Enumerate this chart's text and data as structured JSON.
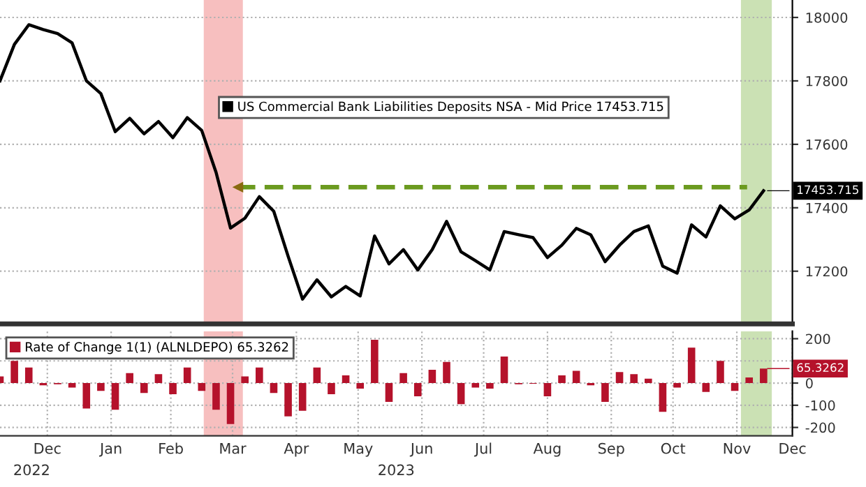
{
  "chart_data": [
    {
      "type": "line",
      "xlim": [
        "2022-11-23",
        "2023-12-13"
      ],
      "ylim": [
        17034,
        18055
      ],
      "yticks": [
        17200,
        17400,
        17600,
        17800,
        18000
      ],
      "tick_labels": "y",
      "grid": true,
      "legend": "top",
      "x": [
        "2022-11-23",
        "2022-11-30",
        "2022-12-07",
        "2022-12-14",
        "2022-12-21",
        "2022-12-28",
        "2023-01-04",
        "2023-01-11",
        "2023-01-18",
        "2023-01-25",
        "2023-02-01",
        "2023-02-08",
        "2023-02-15",
        "2023-02-22",
        "2023-03-01",
        "2023-03-08",
        "2023-03-15",
        "2023-03-22",
        "2023-03-29",
        "2023-04-05",
        "2023-04-12",
        "2023-04-19",
        "2023-04-26",
        "2023-05-03",
        "2023-05-10",
        "2023-05-17",
        "2023-05-24",
        "2023-05-31",
        "2023-06-07",
        "2023-06-14",
        "2023-06-21",
        "2023-06-28",
        "2023-07-05",
        "2023-07-12",
        "2023-07-19",
        "2023-07-26",
        "2023-08-02",
        "2023-08-09",
        "2023-08-16",
        "2023-08-23",
        "2023-08-30",
        "2023-09-06",
        "2023-09-13",
        "2023-09-20",
        "2023-09-27",
        "2023-10-04",
        "2023-10-11",
        "2023-10-18",
        "2023-10-25",
        "2023-11-01",
        "2023-11-08",
        "2023-11-15",
        "2023-11-22",
        "2023-11-29"
      ],
      "series": [
        {
          "name": "US Commercial Bank Liabilities Deposits NSA - Mid Price 17453.715",
          "color": "#000000",
          "line_style": "solid",
          "values": [
            17800,
            17915,
            17977,
            17962,
            17949,
            17920,
            17800,
            17760,
            17640,
            17682,
            17633,
            17672,
            17621,
            17684,
            17644,
            17511,
            17336,
            17367,
            17435,
            17389,
            17247,
            17112,
            17173,
            17119,
            17152,
            17122,
            17311,
            17223,
            17268,
            17204,
            17268,
            17357,
            17261,
            17233,
            17204,
            17325,
            17315,
            17306,
            17243,
            17282,
            17335,
            17315,
            17230,
            17282,
            17325,
            17343,
            17216,
            17194,
            17346,
            17308,
            17406,
            17365,
            17393,
            17453.715
          ]
        },
        {
          "type": "line",
          "color": "#6b9a1f",
          "line_style": "dashed",
          "x": [
            "2023-03-18",
            "2023-11-21"
          ],
          "values": [
            17465,
            17465
          ]
        }
      ],
      "bands": [
        {
          "axis": "x",
          "from": "2023-03-02",
          "to": "2023-03-21",
          "color": "#f4a9a9"
        },
        {
          "axis": "x",
          "from": "2023-11-18",
          "to": "2023-12-03",
          "color": "#b9d79b"
        }
      ],
      "annotations": [
        {
          "text": "17453.715",
          "x": "2023-11-29",
          "y": 17453.715
        }
      ]
    },
    {
      "type": "bar",
      "xlim": [
        "2022-11-23",
        "2023-12-13"
      ],
      "ylim": [
        -238,
        234
      ],
      "yticks": [
        -200,
        -100,
        0,
        {
          "value": 100,
          "label": null
        },
        200
      ],
      "grid": true,
      "legend": "top left",
      "xticks": [
        {
          "value": "2022-12-16",
          "label": "Dec"
        },
        {
          "value": "2023-01-16",
          "label": "Jan"
        },
        {
          "value": "2023-02-14",
          "label": "Feb"
        },
        {
          "value": "2023-03-16",
          "label": "Mar"
        },
        {
          "value": "2023-04-16",
          "label": "Apr"
        },
        {
          "value": "2023-05-16",
          "label": "May"
        },
        {
          "value": "2023-06-16",
          "label": "Jun"
        },
        {
          "value": "2023-07-16",
          "label": "Jul"
        },
        {
          "value": "2023-08-16",
          "label": "Aug"
        },
        {
          "value": "2023-09-16",
          "label": "Sep"
        },
        {
          "value": "2023-10-16",
          "label": "Oct"
        },
        {
          "value": "2023-11-16",
          "label": "Nov"
        },
        {
          "value": "2023-12-13",
          "label": "Dec"
        }
      ],
      "x": [
        "2022-11-23",
        "2022-11-30",
        "2022-12-07",
        "2022-12-14",
        "2022-12-21",
        "2022-12-28",
        "2023-01-04",
        "2023-01-11",
        "2023-01-18",
        "2023-01-25",
        "2023-02-01",
        "2023-02-08",
        "2023-02-15",
        "2023-02-22",
        "2023-03-01",
        "2023-03-08",
        "2023-03-15",
        "2023-03-22",
        "2023-03-29",
        "2023-04-05",
        "2023-04-12",
        "2023-04-19",
        "2023-04-26",
        "2023-05-03",
        "2023-05-10",
        "2023-05-17",
        "2023-05-24",
        "2023-05-31",
        "2023-06-07",
        "2023-06-14",
        "2023-06-21",
        "2023-06-28",
        "2023-07-05",
        "2023-07-12",
        "2023-07-19",
        "2023-07-26",
        "2023-08-02",
        "2023-08-09",
        "2023-08-16",
        "2023-08-23",
        "2023-08-30",
        "2023-09-06",
        "2023-09-13",
        "2023-09-20",
        "2023-09-27",
        "2023-10-04",
        "2023-10-11",
        "2023-10-18",
        "2023-10-25",
        "2023-11-01",
        "2023-11-08",
        "2023-11-15",
        "2023-11-22",
        "2023-11-29"
      ],
      "series": [
        {
          "name": "Rate of Change 1(1) (ALNLDEPO) 65.3262",
          "color": "#b5122b",
          "values": [
            30,
            100,
            70,
            -10,
            -5,
            -20,
            -115,
            -35,
            -120,
            45,
            -45,
            40,
            -50,
            70,
            -35,
            -120,
            -185,
            30,
            70,
            -45,
            -150,
            -125,
            70,
            -50,
            35,
            -25,
            195,
            -85,
            45,
            -60,
            60,
            95,
            -95,
            -20,
            -25,
            120,
            -5,
            -3,
            -60,
            35,
            55,
            -10,
            -85,
            50,
            40,
            20,
            -130,
            -20,
            160,
            -40,
            100,
            -35,
            25,
            65.3262
          ]
        }
      ],
      "bands": [
        {
          "axis": "x",
          "from": "2023-03-02",
          "to": "2023-03-21",
          "color": "#f4a9a9"
        },
        {
          "axis": "x",
          "from": "2023-11-18",
          "to": "2023-12-03",
          "color": "#b9d79b"
        }
      ],
      "annotations": [
        {
          "text": "65.3262",
          "x": "2023-11-29",
          "y": 65.3262
        },
        "2022",
        "2023"
      ]
    }
  ]
}
